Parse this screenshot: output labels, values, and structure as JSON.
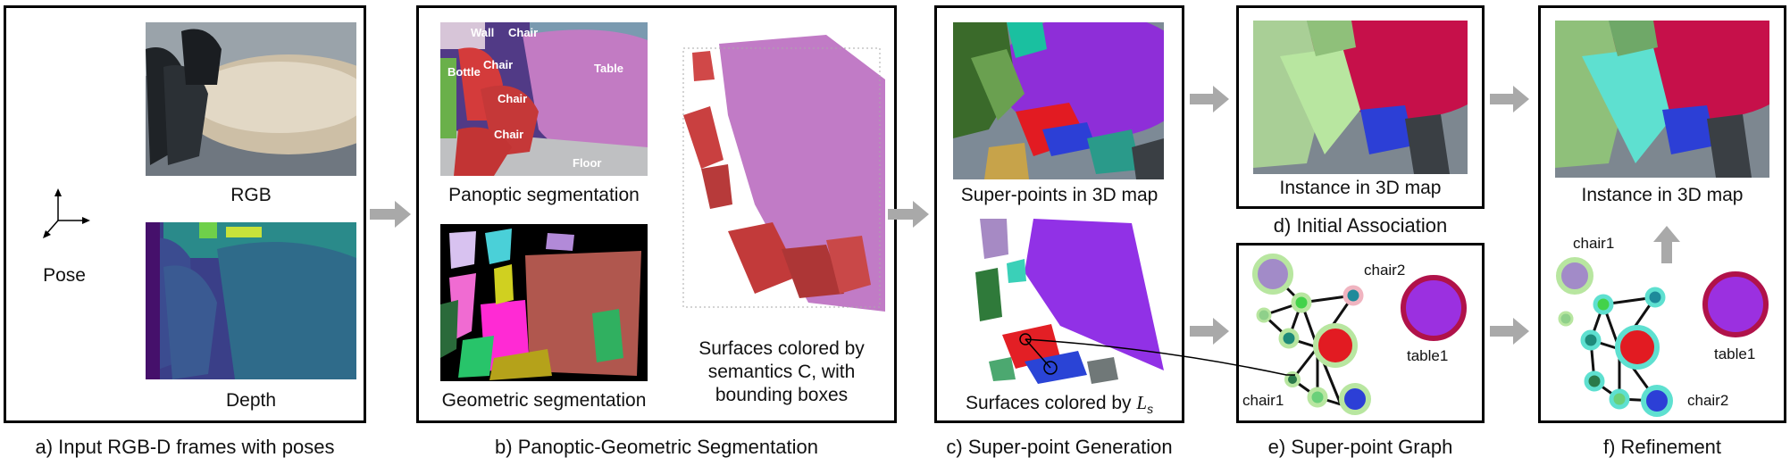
{
  "panels": {
    "a": {
      "rgb_label": "RGB",
      "depth_label": "Depth",
      "pose_label": "Pose",
      "caption": "a) Input RGB-D frames with poses"
    },
    "b": {
      "panoptic_label": "Panoptic segmentation",
      "geometric_label": "Geometric segmentation",
      "surfaces_label": "Surfaces colored by semantics C, with bounding boxes",
      "surfaces_line1": "Surfaces colored by",
      "surfaces_line2": "semantics C, with",
      "surfaces_line3": "bounding boxes",
      "seg_labels": {
        "wall": "Wall",
        "chair_top": "Chair",
        "chair_mid": "Chair",
        "chair_mid2": "Chair",
        "chair_low": "Chair",
        "bottle": "Bottle",
        "table": "Table",
        "floor": "Floor"
      },
      "caption": "b) Panoptic-Geometric Segmentation"
    },
    "c": {
      "superpoints_label": "Super-points in 3D map",
      "surfaces_label_prefix": "Surfaces colored by ",
      "surfaces_label_symbol": "L",
      "surfaces_label_sub": "s",
      "caption": "c) Super-point Generation"
    },
    "d": {
      "instance_label": "Instance in 3D map",
      "caption": "d) Initial Association"
    },
    "e": {
      "labels": {
        "chair2": "chair2",
        "chair1": "chair1",
        "table1": "table1"
      },
      "caption": "e)  Super-point Graph"
    },
    "f": {
      "instance_label": "Instance in 3D map",
      "labels": {
        "chair1": "chair1",
        "chair2": "chair2",
        "table1": "table1"
      },
      "caption": "f) Refinement"
    }
  },
  "colors": {
    "arrow": "#a9a9a9",
    "table_purple": "#9b30e0",
    "table_ring": "#b0124a",
    "red_node": "#e21b22",
    "blue_node": "#2c3fd6",
    "lilac_node": "#a28bc8",
    "chair_green": "#b8e6a0",
    "chair_cyan": "#5ee0d0",
    "table_crimson": "#c6104a"
  }
}
